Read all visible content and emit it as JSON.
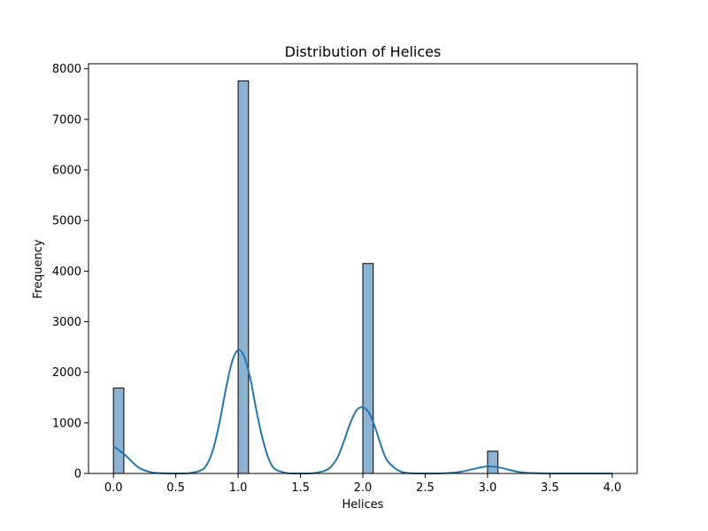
{
  "chart_data": {
    "type": "bar",
    "title": "Distribution of Helices",
    "xlabel": "Helices",
    "ylabel": "Frequency",
    "xlim": [
      -0.2,
      4.2
    ],
    "ylim": [
      0,
      8100
    ],
    "x_ticks": [
      0.0,
      0.5,
      1.0,
      1.5,
      2.0,
      2.5,
      3.0,
      3.5,
      4.0
    ],
    "x_tick_labels": [
      "0.0",
      "0.5",
      "1.0",
      "1.5",
      "2.0",
      "2.5",
      "3.0",
      "3.5",
      "4.0"
    ],
    "y_ticks": [
      0,
      1000,
      2000,
      3000,
      4000,
      5000,
      6000,
      7000,
      8000
    ],
    "y_tick_labels": [
      "0",
      "1000",
      "2000",
      "3000",
      "4000",
      "5000",
      "6000",
      "7000",
      "8000"
    ],
    "bin_width": 0.0833,
    "bins": [
      {
        "x": 0.0,
        "count": 1690
      },
      {
        "x": 1.0,
        "count": 7760
      },
      {
        "x": 2.0,
        "count": 4150
      },
      {
        "x": 3.0,
        "count": 440
      }
    ],
    "kde": {
      "x": [
        0.0,
        0.1,
        0.2,
        0.3,
        0.4,
        0.5,
        0.6,
        0.7,
        0.75,
        0.8,
        0.85,
        0.9,
        0.95,
        1.0,
        1.05,
        1.1,
        1.15,
        1.2,
        1.25,
        1.3,
        1.4,
        1.5,
        1.6,
        1.7,
        1.75,
        1.8,
        1.85,
        1.9,
        1.95,
        2.0,
        2.05,
        2.1,
        2.15,
        2.2,
        2.3,
        2.4,
        2.5,
        2.6,
        2.7,
        2.8,
        2.9,
        3.0,
        3.1,
        3.2,
        3.3,
        3.5,
        3.7,
        4.0
      ],
      "y": [
        540,
        350,
        120,
        25,
        5,
        0,
        5,
        60,
        180,
        480,
        1000,
        1650,
        2200,
        2440,
        2300,
        1850,
        1200,
        650,
        260,
        80,
        5,
        0,
        5,
        60,
        150,
        330,
        650,
        1000,
        1250,
        1310,
        1200,
        900,
        520,
        240,
        40,
        3,
        0,
        0,
        10,
        40,
        95,
        140,
        115,
        55,
        15,
        0,
        0,
        0
      ]
    },
    "bar_color": "#8db3d3",
    "bar_edge_color": "#000000",
    "kde_color": "#1f77b4",
    "grid": false,
    "legend": "none"
  }
}
